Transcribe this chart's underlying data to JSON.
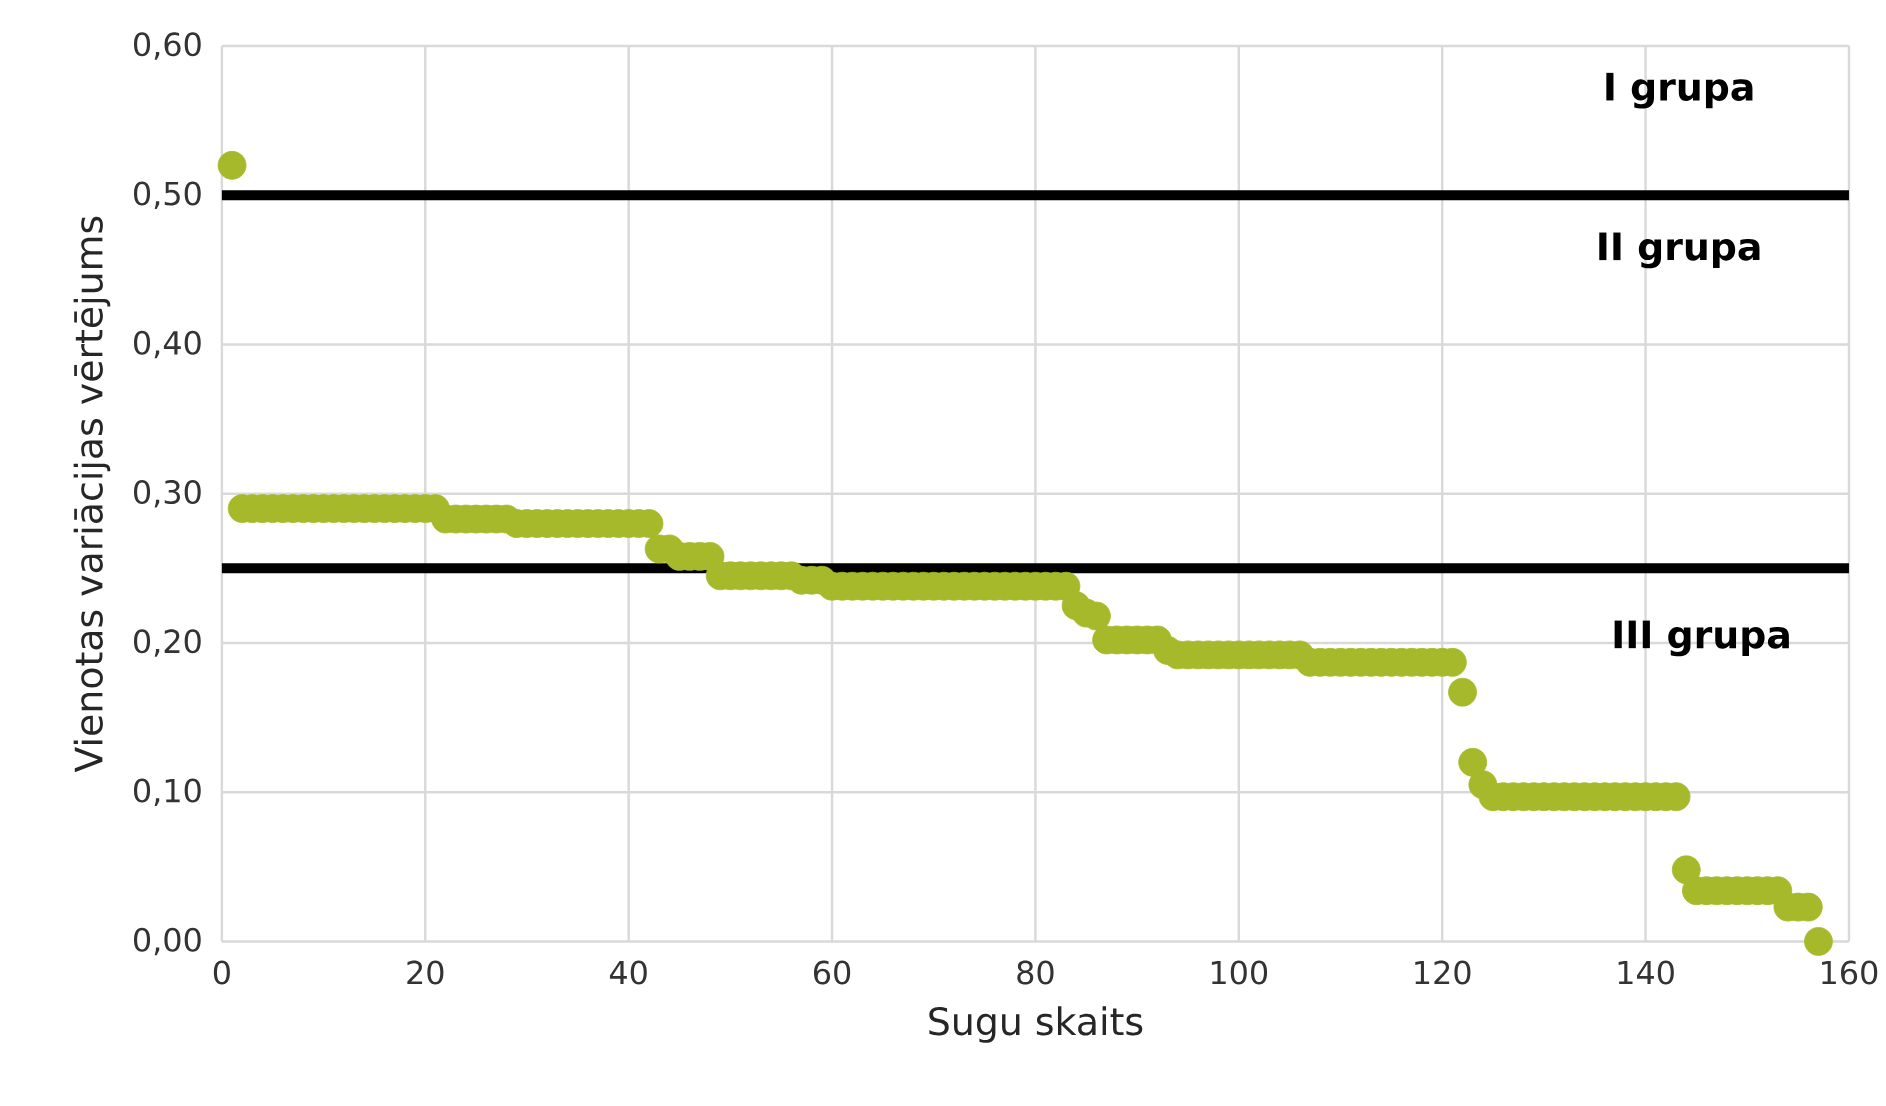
{
  "chart_data": {
    "type": "scatter",
    "xlabel": "Sugu skaits",
    "ylabel": "Vienotas variācijas  vērtējums",
    "xlim": [
      0,
      160
    ],
    "ylim": [
      0,
      0.6
    ],
    "xticks": [
      0,
      20,
      40,
      60,
      80,
      100,
      120,
      140,
      160
    ],
    "yticks": [
      {
        "value": 0,
        "label": "0,00"
      },
      {
        "value": 0.1,
        "label": "0,10"
      },
      {
        "value": 0.2,
        "label": "0,20"
      },
      {
        "value": 0.3,
        "label": "0,30"
      },
      {
        "value": 0.4,
        "label": "0,40"
      },
      {
        "value": 0.5,
        "label": "0,50"
      },
      {
        "value": 0.6,
        "label": "0,60"
      }
    ],
    "grid": true,
    "ref_lines": [
      {
        "axis": "y",
        "value": 0.5,
        "color": "#000000"
      },
      {
        "axis": "y",
        "value": 0.25,
        "color": "#000000"
      }
    ],
    "annotations": [
      "I grupa",
      "II grupa",
      "III grupa"
    ],
    "series": [
      {
        "color": "#a6b92a",
        "x": [
          1,
          2,
          3,
          4,
          5,
          6,
          7,
          8,
          9,
          10,
          11,
          12,
          13,
          14,
          15,
          16,
          17,
          18,
          19,
          20,
          21,
          22,
          23,
          24,
          25,
          26,
          27,
          28,
          29,
          30,
          31,
          32,
          33,
          34,
          35,
          36,
          37,
          38,
          39,
          40,
          41,
          42,
          43,
          44,
          45,
          46,
          47,
          48,
          49,
          50,
          51,
          52,
          53,
          54,
          55,
          56,
          57,
          58,
          59,
          60,
          61,
          62,
          63,
          64,
          65,
          66,
          67,
          68,
          69,
          70,
          71,
          72,
          73,
          74,
          75,
          76,
          77,
          78,
          79,
          80,
          81,
          82,
          83,
          84,
          85,
          86,
          87,
          88,
          89,
          90,
          91,
          92,
          93,
          94,
          95,
          96,
          97,
          98,
          99,
          100,
          101,
          102,
          103,
          104,
          105,
          106,
          107,
          108,
          109,
          110,
          111,
          112,
          113,
          114,
          115,
          116,
          117,
          118,
          119,
          120,
          121,
          122,
          123,
          124,
          125,
          126,
          127,
          128,
          129,
          130,
          131,
          132,
          133,
          134,
          135,
          136,
          137,
          138,
          139,
          140,
          141,
          142,
          143,
          144,
          145,
          146,
          147,
          148,
          149,
          150,
          151,
          152,
          153,
          154,
          155,
          156,
          157
        ],
        "values": [
          0.52,
          0.29,
          0.29,
          0.29,
          0.29,
          0.29,
          0.29,
          0.29,
          0.29,
          0.29,
          0.29,
          0.29,
          0.29,
          0.29,
          0.29,
          0.29,
          0.29,
          0.29,
          0.29,
          0.29,
          0.29,
          0.283,
          0.283,
          0.283,
          0.283,
          0.283,
          0.283,
          0.283,
          0.28,
          0.28,
          0.28,
          0.28,
          0.28,
          0.28,
          0.28,
          0.28,
          0.28,
          0.28,
          0.28,
          0.28,
          0.28,
          0.28,
          0.263,
          0.263,
          0.258,
          0.258,
          0.258,
          0.258,
          0.245,
          0.245,
          0.245,
          0.245,
          0.245,
          0.245,
          0.245,
          0.245,
          0.242,
          0.242,
          0.242,
          0.238,
          0.238,
          0.238,
          0.238,
          0.238,
          0.238,
          0.238,
          0.238,
          0.238,
          0.238,
          0.238,
          0.238,
          0.238,
          0.238,
          0.238,
          0.238,
          0.238,
          0.238,
          0.238,
          0.238,
          0.238,
          0.238,
          0.238,
          0.238,
          0.225,
          0.22,
          0.218,
          0.202,
          0.202,
          0.202,
          0.202,
          0.202,
          0.202,
          0.195,
          0.192,
          0.192,
          0.192,
          0.192,
          0.192,
          0.192,
          0.192,
          0.192,
          0.192,
          0.192,
          0.192,
          0.192,
          0.192,
          0.187,
          0.187,
          0.187,
          0.187,
          0.187,
          0.187,
          0.187,
          0.187,
          0.187,
          0.187,
          0.187,
          0.187,
          0.187,
          0.187,
          0.187,
          0.167,
          0.12,
          0.105,
          0.097,
          0.097,
          0.097,
          0.097,
          0.097,
          0.097,
          0.097,
          0.097,
          0.097,
          0.097,
          0.097,
          0.097,
          0.097,
          0.097,
          0.097,
          0.097,
          0.097,
          0.097,
          0.097,
          0.048,
          0.034,
          0.034,
          0.034,
          0.034,
          0.034,
          0.034,
          0.034,
          0.034,
          0.034,
          0.023,
          0.023,
          0.023,
          0
        ]
      }
    ]
  }
}
